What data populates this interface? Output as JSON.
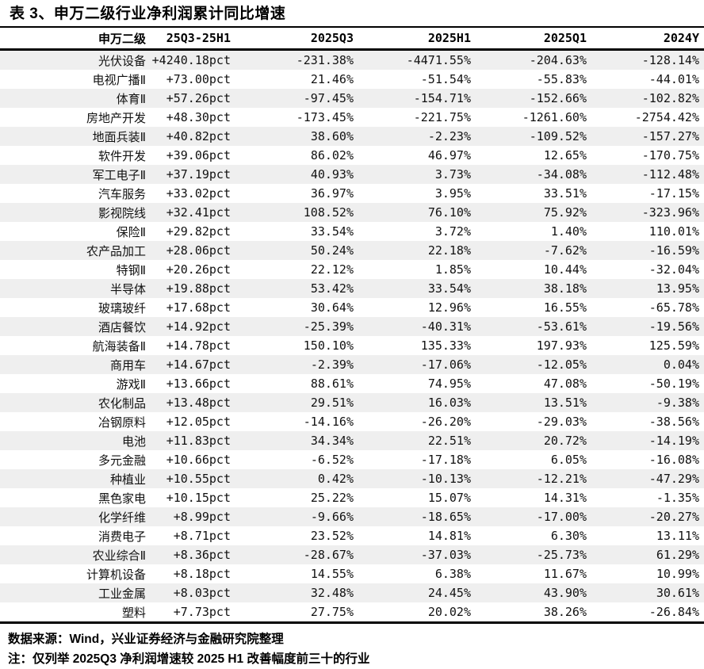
{
  "page_title": "表 3、申万二级行业净利润累计同比增速",
  "chart_data": {
    "type": "table",
    "title": "表 3、申万二级行业净利润累计同比增速",
    "columns": [
      "申万二级",
      "25Q3-25H1",
      "2025Q3",
      "2025H1",
      "2025Q1",
      "2024Y"
    ],
    "rows": [
      [
        "光伏设备",
        "+4240.18pct",
        "-231.38%",
        "-4471.55%",
        "-204.63%",
        "-128.14%"
      ],
      [
        "电视广播Ⅱ",
        "+73.00pct",
        "21.46%",
        "-51.54%",
        "-55.83%",
        "-44.01%"
      ],
      [
        "体育Ⅱ",
        "+57.26pct",
        "-97.45%",
        "-154.71%",
        "-152.66%",
        "-102.82%"
      ],
      [
        "房地产开发",
        "+48.30pct",
        "-173.45%",
        "-221.75%",
        "-1261.60%",
        "-2754.42%"
      ],
      [
        "地面兵装Ⅱ",
        "+40.82pct",
        "38.60%",
        "-2.23%",
        "-109.52%",
        "-157.27%"
      ],
      [
        "软件开发",
        "+39.06pct",
        "86.02%",
        "46.97%",
        "12.65%",
        "-170.75%"
      ],
      [
        "军工电子Ⅱ",
        "+37.19pct",
        "40.93%",
        "3.73%",
        "-34.08%",
        "-112.48%"
      ],
      [
        "汽车服务",
        "+33.02pct",
        "36.97%",
        "3.95%",
        "33.51%",
        "-17.15%"
      ],
      [
        "影视院线",
        "+32.41pct",
        "108.52%",
        "76.10%",
        "75.92%",
        "-323.96%"
      ],
      [
        "保险Ⅱ",
        "+29.82pct",
        "33.54%",
        "3.72%",
        "1.40%",
        "110.01%"
      ],
      [
        "农产品加工",
        "+28.06pct",
        "50.24%",
        "22.18%",
        "-7.62%",
        "-16.59%"
      ],
      [
        "特钢Ⅱ",
        "+20.26pct",
        "22.12%",
        "1.85%",
        "10.44%",
        "-32.04%"
      ],
      [
        "半导体",
        "+19.88pct",
        "53.42%",
        "33.54%",
        "38.18%",
        "13.95%"
      ],
      [
        "玻璃玻纤",
        "+17.68pct",
        "30.64%",
        "12.96%",
        "16.55%",
        "-65.78%"
      ],
      [
        "酒店餐饮",
        "+14.92pct",
        "-25.39%",
        "-40.31%",
        "-53.61%",
        "-19.56%"
      ],
      [
        "航海装备Ⅱ",
        "+14.78pct",
        "150.10%",
        "135.33%",
        "197.93%",
        "125.59%"
      ],
      [
        "商用车",
        "+14.67pct",
        "-2.39%",
        "-17.06%",
        "-12.05%",
        "0.04%"
      ],
      [
        "游戏Ⅱ",
        "+13.66pct",
        "88.61%",
        "74.95%",
        "47.08%",
        "-50.19%"
      ],
      [
        "农化制品",
        "+13.48pct",
        "29.51%",
        "16.03%",
        "13.51%",
        "-9.38%"
      ],
      [
        "冶钢原料",
        "+12.05pct",
        "-14.16%",
        "-26.20%",
        "-29.03%",
        "-38.56%"
      ],
      [
        "电池",
        "+11.83pct",
        "34.34%",
        "22.51%",
        "20.72%",
        "-14.19%"
      ],
      [
        "多元金融",
        "+10.66pct",
        "-6.52%",
        "-17.18%",
        "6.05%",
        "-16.08%"
      ],
      [
        "种植业",
        "+10.55pct",
        "0.42%",
        "-10.13%",
        "-12.21%",
        "-47.29%"
      ],
      [
        "黑色家电",
        "+10.15pct",
        "25.22%",
        "15.07%",
        "14.31%",
        "-1.35%"
      ],
      [
        "化学纤维",
        "+8.99pct",
        "-9.66%",
        "-18.65%",
        "-17.00%",
        "-20.27%"
      ],
      [
        "消费电子",
        "+8.71pct",
        "23.52%",
        "14.81%",
        "6.30%",
        "13.11%"
      ],
      [
        "农业综合Ⅱ",
        "+8.36pct",
        "-28.67%",
        "-37.03%",
        "-25.73%",
        "61.29%"
      ],
      [
        "计算机设备",
        "+8.18pct",
        "14.55%",
        "6.38%",
        "11.67%",
        "10.99%"
      ],
      [
        "工业金属",
        "+8.03pct",
        "32.48%",
        "24.45%",
        "43.90%",
        "30.61%"
      ],
      [
        "塑料",
        "+7.73pct",
        "27.75%",
        "20.02%",
        "38.26%",
        "-26.84%"
      ]
    ]
  },
  "footer": {
    "source": "数据来源：Wind，兴业证券经济与金融研究院整理",
    "note": "注：仅列举 2025Q3 净利润增速较 2025 H1 改善幅度前三十的行业"
  },
  "colors": {
    "stripe": "#efefef",
    "text": "#111111",
    "rule": "#000000"
  }
}
